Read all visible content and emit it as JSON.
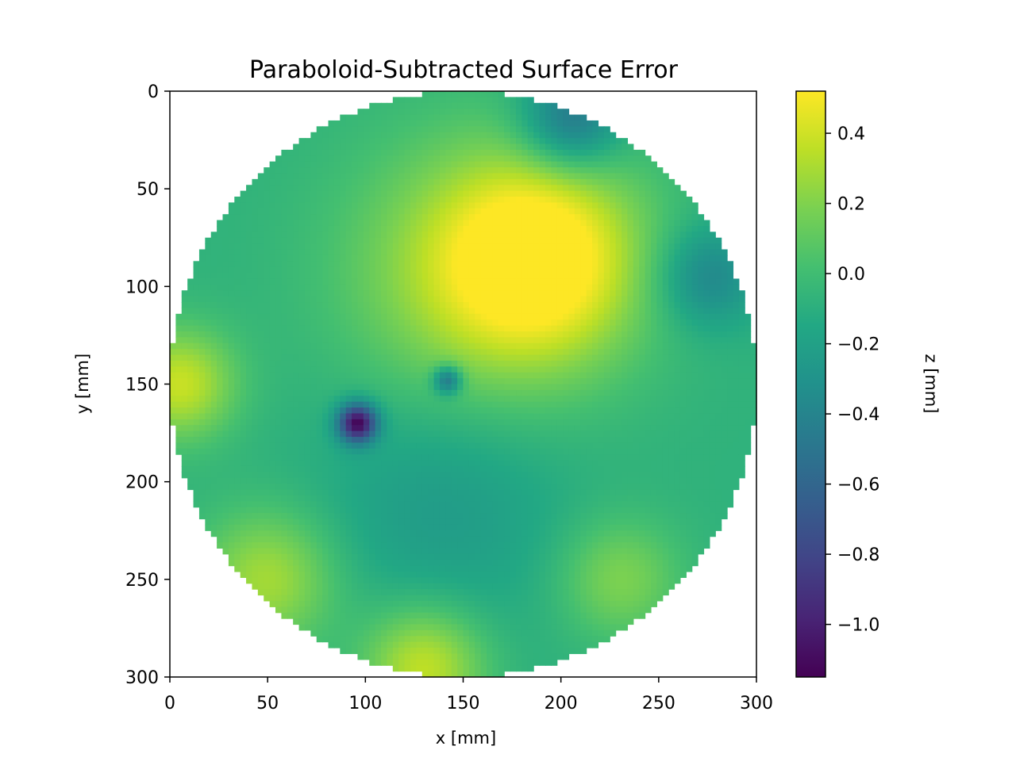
{
  "chart_data": {
    "type": "heatmap",
    "title": "Paraboloid-Subtracted Surface Error",
    "xlabel": "x [mm]",
    "ylabel": "y [mm]",
    "colorbar_label": "z [mm]",
    "colormap": "viridis",
    "xlim": [
      0,
      300
    ],
    "ylim": [
      300,
      0
    ],
    "zlim": [
      -1.15,
      0.52
    ],
    "x_ticks": [
      "0",
      "50",
      "100",
      "150",
      "200",
      "250",
      "300"
    ],
    "y_ticks": [
      "0",
      "50",
      "100",
      "150",
      "200",
      "250",
      "300"
    ],
    "colorbar_ticks": [
      "0.4",
      "0.2",
      "0.0",
      "−0.2",
      "−0.4",
      "−0.6",
      "−0.8",
      "−1.0"
    ],
    "surface": {
      "center": [
        150,
        150
      ],
      "radius": 150,
      "background_z": -0.08,
      "features": [
        {
          "name": "yellow high region",
          "x": 190,
          "y": 85,
          "z": 0.45,
          "sigma": 35
        },
        {
          "name": "upper plateau",
          "x": 160,
          "y": 95,
          "z": 0.3,
          "sigma": 50
        },
        {
          "name": "left edge rim",
          "x": 5,
          "y": 150,
          "z": 0.38,
          "sigma": 20
        },
        {
          "name": "bottom rim",
          "x": 130,
          "y": 295,
          "z": 0.38,
          "sigma": 22
        },
        {
          "name": "lower-left rim",
          "x": 50,
          "y": 250,
          "z": 0.3,
          "sigma": 25
        },
        {
          "name": "lower-right streak",
          "x": 230,
          "y": 250,
          "z": 0.2,
          "sigma": 22
        },
        {
          "name": "top-right dark edge",
          "x": 205,
          "y": 15,
          "z": -0.55,
          "sigma": 18
        },
        {
          "name": "right edge dark",
          "x": 275,
          "y": 95,
          "z": -0.4,
          "sigma": 18
        },
        {
          "name": "deep pit",
          "x": 96,
          "y": 170,
          "z": -1.12,
          "sigma": 7
        },
        {
          "name": "small pit",
          "x": 142,
          "y": 148,
          "z": -0.6,
          "sigma": 5
        },
        {
          "name": "central depression",
          "x": 140,
          "y": 210,
          "z": -0.25,
          "sigma": 45
        }
      ]
    }
  }
}
